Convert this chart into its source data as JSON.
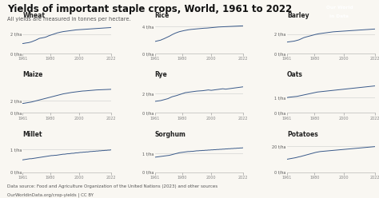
{
  "title": "Yields of important staple crops, World, 1961 to 2022",
  "subtitle": "All yields are measured in tonnes per hectare.",
  "footer_line1": "Data source: Food and Agriculture Organization of the United Nations (2023) and other sources",
  "footer_line2": "OurWorldinData.org/crop-yields | CC BY",
  "bg_color": "#f9f7f2",
  "line_color": "#3a5a8a",
  "logo_bg": "#1a3a5c",
  "logo_red": "#cc0000",
  "year_start": 1961,
  "year_end": 2022,
  "crops_order": [
    [
      "Wheat",
      "Rice",
      "Barley"
    ],
    [
      "Maize",
      "Rye",
      "Oats"
    ],
    [
      "Millet",
      "Sorghum",
      "Potatoes"
    ]
  ],
  "yticks": {
    "Wheat": [
      0,
      2
    ],
    "Rice": [
      0,
      4
    ],
    "Barley": [
      0,
      2
    ],
    "Maize": [
      0,
      2
    ],
    "Rye": [
      0,
      2
    ],
    "Oats": [
      0,
      1
    ],
    "Millet": [
      0,
      1
    ],
    "Sorghum": [
      0,
      1
    ],
    "Potatoes": [
      0,
      20
    ]
  },
  "ylabels": {
    "Wheat": [
      "0 t/ha",
      "2 t/ha"
    ],
    "Rice": [
      "0 t/ha",
      "4 t/ha"
    ],
    "Barley": [
      "0 t/ha",
      "2 t/ha"
    ],
    "Maize": [
      "0 t/ha",
      "2 t/ha"
    ],
    "Rye": [
      "0 t/ha",
      "2 t/ha"
    ],
    "Oats": [
      "0 t/ha",
      "1 t/ha"
    ],
    "Millet": [
      "0 t/ha",
      "1 t/ha"
    ],
    "Sorghum": [
      "0 t/ha",
      "1 t/ha"
    ],
    "Potatoes": [
      "0 t/ha",
      "20 t/ha"
    ]
  },
  "ylim": {
    "Wheat": [
      0,
      3.5
    ],
    "Rice": [
      0,
      5.0
    ],
    "Barley": [
      0,
      3.5
    ],
    "Maize": [
      0,
      5.5
    ],
    "Rye": [
      0,
      3.5
    ],
    "Oats": [
      0,
      2.2
    ],
    "Millet": [
      0,
      1.5
    ],
    "Sorghum": [
      0,
      1.8
    ],
    "Potatoes": [
      0,
      26
    ]
  },
  "data": {
    "Wheat": [
      1.05,
      1.07,
      1.1,
      1.12,
      1.14,
      1.18,
      1.22,
      1.28,
      1.34,
      1.4,
      1.47,
      1.55,
      1.6,
      1.62,
      1.65,
      1.68,
      1.72,
      1.78,
      1.85,
      1.9,
      1.95,
      2.0,
      2.05,
      2.1,
      2.15,
      2.18,
      2.22,
      2.25,
      2.28,
      2.3,
      2.32,
      2.34,
      2.36,
      2.38,
      2.4,
      2.42,
      2.44,
      2.46,
      2.47,
      2.48,
      2.49,
      2.5,
      2.51,
      2.52,
      2.53,
      2.54,
      2.55,
      2.56,
      2.57,
      2.58,
      2.59,
      2.6,
      2.61,
      2.62,
      2.63,
      2.64,
      2.65,
      2.66,
      2.67,
      2.68,
      2.69,
      2.7
    ],
    "Rice": [
      1.8,
      1.85,
      1.9,
      1.95,
      2.0,
      2.1,
      2.18,
      2.28,
      2.38,
      2.48,
      2.58,
      2.7,
      2.82,
      2.92,
      3.02,
      3.1,
      3.18,
      3.25,
      3.3,
      3.35,
      3.4,
      3.44,
      3.48,
      3.52,
      3.55,
      3.58,
      3.6,
      3.62,
      3.64,
      3.66,
      3.68,
      3.7,
      3.72,
      3.74,
      3.76,
      3.77,
      3.78,
      3.8,
      3.82,
      3.84,
      3.86,
      3.88,
      3.9,
      3.92,
      3.94,
      3.95,
      3.96,
      3.97,
      3.98,
      3.99,
      4.0,
      4.01,
      4.02,
      4.03,
      4.04,
      4.05,
      4.06,
      4.07,
      4.08,
      4.09,
      4.1,
      4.11
    ],
    "Barley": [
      1.2,
      1.22,
      1.24,
      1.26,
      1.28,
      1.3,
      1.34,
      1.38,
      1.42,
      1.48,
      1.55,
      1.62,
      1.68,
      1.72,
      1.76,
      1.8,
      1.84,
      1.88,
      1.92,
      1.96,
      2.0,
      2.03,
      2.06,
      2.08,
      2.1,
      2.12,
      2.14,
      2.16,
      2.18,
      2.2,
      2.22,
      2.24,
      2.26,
      2.27,
      2.28,
      2.29,
      2.3,
      2.31,
      2.32,
      2.33,
      2.34,
      2.35,
      2.36,
      2.37,
      2.38,
      2.39,
      2.4,
      2.41,
      2.42,
      2.43,
      2.44,
      2.45,
      2.46,
      2.47,
      2.48,
      2.49,
      2.5,
      2.51,
      2.52,
      2.53,
      2.54,
      2.55
    ],
    "Maize": [
      1.55,
      1.58,
      1.62,
      1.66,
      1.7,
      1.74,
      1.78,
      1.84,
      1.9,
      1.96,
      2.02,
      2.08,
      2.14,
      2.2,
      2.26,
      2.32,
      2.38,
      2.44,
      2.5,
      2.56,
      2.62,
      2.68,
      2.74,
      2.8,
      2.86,
      2.92,
      2.98,
      3.04,
      3.1,
      3.14,
      3.18,
      3.22,
      3.26,
      3.3,
      3.34,
      3.37,
      3.4,
      3.43,
      3.46,
      3.49,
      3.52,
      3.55,
      3.57,
      3.58,
      3.6,
      3.62,
      3.64,
      3.66,
      3.68,
      3.7,
      3.72,
      3.74,
      3.75,
      3.76,
      3.77,
      3.78,
      3.79,
      3.8,
      3.81,
      3.82,
      3.83,
      3.84
    ],
    "Rye": [
      1.2,
      1.22,
      1.24,
      1.26,
      1.28,
      1.32,
      1.36,
      1.4,
      1.44,
      1.48,
      1.55,
      1.62,
      1.68,
      1.72,
      1.76,
      1.8,
      1.85,
      1.9,
      1.95,
      2.0,
      2.05,
      2.1,
      2.12,
      2.14,
      2.16,
      2.18,
      2.2,
      2.22,
      2.24,
      2.26,
      2.27,
      2.28,
      2.29,
      2.3,
      2.32,
      2.34,
      2.36,
      2.38,
      2.36,
      2.34,
      2.36,
      2.38,
      2.4,
      2.42,
      2.44,
      2.46,
      2.48,
      2.5,
      2.48,
      2.46,
      2.48,
      2.5,
      2.52,
      2.54,
      2.56,
      2.58,
      2.6,
      2.62,
      2.64,
      2.66,
      2.68,
      2.7
    ],
    "Oats": [
      1.0,
      1.02,
      1.03,
      1.04,
      1.05,
      1.06,
      1.07,
      1.08,
      1.1,
      1.12,
      1.14,
      1.16,
      1.18,
      1.2,
      1.22,
      1.24,
      1.26,
      1.28,
      1.3,
      1.32,
      1.34,
      1.36,
      1.37,
      1.38,
      1.39,
      1.4,
      1.41,
      1.42,
      1.43,
      1.44,
      1.45,
      1.46,
      1.47,
      1.48,
      1.49,
      1.5,
      1.51,
      1.52,
      1.53,
      1.54,
      1.55,
      1.56,
      1.57,
      1.58,
      1.59,
      1.6,
      1.61,
      1.62,
      1.63,
      1.64,
      1.65,
      1.66,
      1.67,
      1.68,
      1.69,
      1.7,
      1.71,
      1.72,
      1.73,
      1.74,
      1.75,
      1.76
    ],
    "Millet": [
      0.55,
      0.56,
      0.57,
      0.58,
      0.59,
      0.6,
      0.6,
      0.61,
      0.62,
      0.63,
      0.64,
      0.65,
      0.66,
      0.67,
      0.68,
      0.69,
      0.7,
      0.71,
      0.72,
      0.73,
      0.74,
      0.74,
      0.75,
      0.75,
      0.76,
      0.77,
      0.78,
      0.79,
      0.8,
      0.8,
      0.81,
      0.82,
      0.82,
      0.83,
      0.84,
      0.84,
      0.85,
      0.86,
      0.86,
      0.87,
      0.88,
      0.88,
      0.89,
      0.89,
      0.9,
      0.9,
      0.91,
      0.92,
      0.92,
      0.93,
      0.93,
      0.94,
      0.94,
      0.95,
      0.95,
      0.96,
      0.96,
      0.97,
      0.97,
      0.98,
      0.98,
      0.99
    ],
    "Sorghum": [
      0.8,
      0.81,
      0.82,
      0.83,
      0.84,
      0.85,
      0.86,
      0.87,
      0.88,
      0.89,
      0.9,
      0.92,
      0.94,
      0.96,
      0.98,
      1.0,
      1.02,
      1.04,
      1.05,
      1.06,
      1.07,
      1.08,
      1.09,
      1.1,
      1.1,
      1.11,
      1.11,
      1.12,
      1.13,
      1.14,
      1.14,
      1.15,
      1.15,
      1.16,
      1.16,
      1.17,
      1.17,
      1.18,
      1.18,
      1.19,
      1.19,
      1.2,
      1.2,
      1.21,
      1.21,
      1.22,
      1.22,
      1.23,
      1.23,
      1.24,
      1.24,
      1.25,
      1.25,
      1.26,
      1.26,
      1.27,
      1.27,
      1.28,
      1.28,
      1.29,
      1.29,
      1.3
    ],
    "Potatoes": [
      10.0,
      10.2,
      10.4,
      10.6,
      10.8,
      11.0,
      11.2,
      11.5,
      11.8,
      12.0,
      12.3,
      12.6,
      12.9,
      13.2,
      13.5,
      13.8,
      14.1,
      14.4,
      14.7,
      15.0,
      15.3,
      15.5,
      15.7,
      15.9,
      16.0,
      16.1,
      16.2,
      16.3,
      16.4,
      16.5,
      16.6,
      16.7,
      16.8,
      16.9,
      17.0,
      17.1,
      17.2,
      17.3,
      17.4,
      17.5,
      17.6,
      17.7,
      17.8,
      17.9,
      18.0,
      18.1,
      18.2,
      18.3,
      18.4,
      18.5,
      18.6,
      18.7,
      18.8,
      18.9,
      19.0,
      19.1,
      19.2,
      19.3,
      19.4,
      19.5,
      19.6,
      19.7
    ]
  }
}
